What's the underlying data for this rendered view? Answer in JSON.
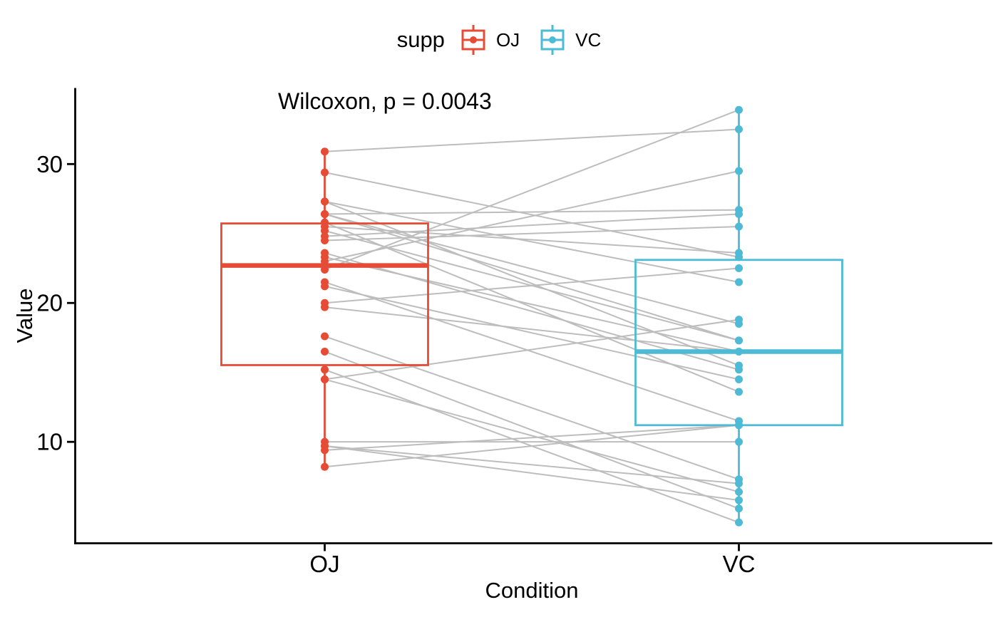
{
  "legend": {
    "title": "supp",
    "entries": [
      {
        "label": "OJ",
        "color": "#E64B35",
        "glyph": "boxplot-key-icon"
      },
      {
        "label": "VC",
        "color": "#4DBBD5",
        "glyph": "boxplot-key-icon"
      }
    ]
  },
  "chart_data": {
    "type": "paired_boxplot",
    "title": "",
    "annotation": "Wilcoxon, p = 0.0043",
    "xlabel": "Condition",
    "ylabel": "Value",
    "categories": [
      "OJ",
      "VC"
    ],
    "series_colors": {
      "OJ": "#E64B35",
      "VC": "#4DBBD5"
    },
    "pair_line_color": "#BDBDBD",
    "y_ticks": [
      10,
      20,
      30
    ],
    "ylim": [
      2.7,
      35.4
    ],
    "grid": false,
    "legend_position": "top",
    "pairs": [
      [
        15.2,
        4.2
      ],
      [
        21.5,
        11.5
      ],
      [
        17.6,
        7.3
      ],
      [
        9.7,
        5.8
      ],
      [
        14.5,
        6.4
      ],
      [
        10.0,
        10.0
      ],
      [
        8.2,
        11.2
      ],
      [
        9.4,
        11.2
      ],
      [
        16.5,
        5.2
      ],
      [
        9.7,
        7.0
      ],
      [
        19.7,
        16.5
      ],
      [
        23.3,
        16.5
      ],
      [
        23.6,
        15.2
      ],
      [
        26.4,
        17.3
      ],
      [
        20.0,
        22.5
      ],
      [
        25.2,
        17.3
      ],
      [
        25.8,
        13.6
      ],
      [
        21.2,
        14.5
      ],
      [
        14.5,
        18.8
      ],
      [
        27.3,
        15.5
      ],
      [
        25.5,
        23.6
      ],
      [
        26.4,
        18.5
      ],
      [
        22.4,
        33.9
      ],
      [
        24.5,
        25.5
      ],
      [
        24.8,
        26.4
      ],
      [
        30.9,
        32.5
      ],
      [
        26.4,
        26.7
      ],
      [
        27.3,
        21.5
      ],
      [
        29.4,
        23.3
      ],
      [
        23.0,
        29.5
      ]
    ],
    "box_stats": {
      "OJ": {
        "min": 8.2,
        "q1": 15.525,
        "median": 22.7,
        "q3": 25.725,
        "max": 30.9
      },
      "VC": {
        "min": 4.2,
        "q1": 11.2,
        "median": 16.5,
        "q3": 23.1,
        "max": 33.9
      }
    }
  }
}
